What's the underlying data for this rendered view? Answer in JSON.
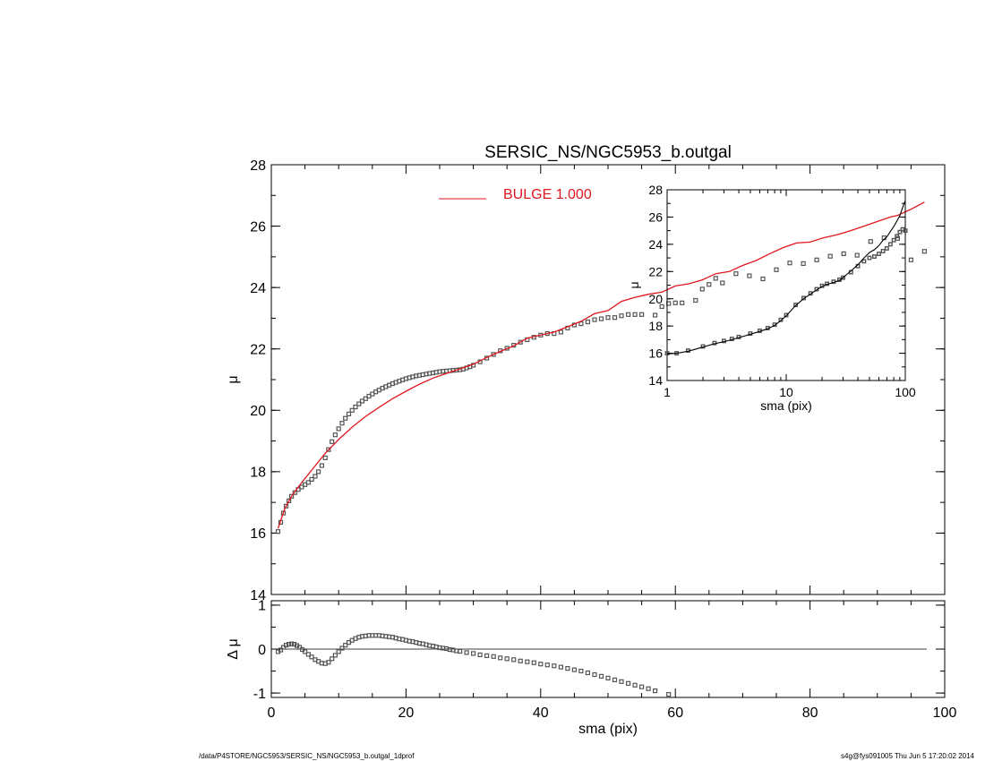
{
  "footer": {
    "path": "/data/P4STORE/NGC5953/SERSIC_NS/NGC5953_b.outgal_1dprof",
    "stamp": "s4g@fys091005  Thu Jun  5 17:20:02 2014"
  },
  "colors": {
    "bulge": "#e0161e",
    "data": "#555555",
    "axes": "#000000"
  },
  "chart_data": [
    {
      "id": "main",
      "type": "scatter",
      "title": "SERSIC_NS/NGC5953_b.outgal",
      "xlabel": "sma (pix)",
      "ylabel": "μ",
      "xlim": [
        0,
        100
      ],
      "ylim": [
        28,
        14
      ],
      "xticks": [
        "0",
        "20",
        "40",
        "60",
        "80",
        "100"
      ],
      "yticks": [
        "14",
        "16",
        "18",
        "20",
        "22",
        "24",
        "26",
        "28"
      ],
      "legend": {
        "label": "BULGE  1.000",
        "placement": "top-center"
      },
      "series": [
        {
          "role": "data",
          "style": "squares",
          "x": [
            1.0,
            1.4,
            1.8,
            2.2,
            2.6,
            3.0,
            3.5,
            4.0,
            4.5,
            5.0,
            5.5,
            6.0,
            6.5,
            7.0,
            7.5,
            8.0,
            8.5,
            9.0,
            9.5,
            10.0,
            10.5,
            11.0,
            11.5,
            12.0,
            12.5,
            13.0,
            13.5,
            14.0,
            14.5,
            15.0,
            15.5,
            16.0,
            16.5,
            17.0,
            17.5,
            18.0,
            18.5,
            19.0,
            19.5,
            20.0,
            20.5,
            21.0,
            21.5,
            22.0,
            22.5,
            23.0,
            23.5,
            24.0,
            24.5,
            25.0,
            25.5,
            26.0,
            26.5,
            27.0,
            27.5,
            28.0,
            28.5,
            29.0,
            29.5,
            30.0,
            31.0,
            32.0,
            33.0,
            34.0,
            35.0,
            36.0,
            37.0,
            38.0,
            39.0,
            40.0,
            41.0,
            42.0,
            43.0,
            44.0,
            45.0,
            46.0,
            47.0,
            48.0,
            49.0,
            50.0,
            51.0,
            52.0,
            53.0,
            54.0,
            55.0,
            57.0,
            58.0,
            59.0,
            60.0,
            61.0,
            63.0,
            64.0,
            65.0,
            66.0,
            67.0,
            69.0,
            71.0,
            73.0,
            75.0,
            77.0,
            79.0,
            81.0,
            83.0,
            85.0,
            87.0,
            89.0,
            91.0,
            93.0,
            95.0,
            97.0
          ],
          "y": [
            16.05,
            16.35,
            16.65,
            16.88,
            17.05,
            17.2,
            17.32,
            17.42,
            17.5,
            17.58,
            17.65,
            17.75,
            17.85,
            18.0,
            18.2,
            18.45,
            18.72,
            18.98,
            19.2,
            19.4,
            19.58,
            19.74,
            19.88,
            20.0,
            20.11,
            20.21,
            20.3,
            20.38,
            20.46,
            20.53,
            20.6,
            20.66,
            20.72,
            20.77,
            20.82,
            20.87,
            20.91,
            20.95,
            20.99,
            21.03,
            21.06,
            21.09,
            21.12,
            21.14,
            21.16,
            21.18,
            21.2,
            21.22,
            21.24,
            21.26,
            21.27,
            21.28,
            21.29,
            21.3,
            21.31,
            21.32,
            21.34,
            21.38,
            21.42,
            21.47,
            21.58,
            21.7,
            21.82,
            21.94,
            22.02,
            22.12,
            22.22,
            22.3,
            22.38,
            22.45,
            22.5,
            22.5,
            22.55,
            22.68,
            22.78,
            22.82,
            22.88,
            22.95,
            22.98,
            23.02,
            23.02,
            23.08,
            23.12,
            23.12,
            23.12,
            23.1,
            23.38,
            23.48,
            23.5,
            23.5,
            23.58,
            23.95,
            24.1,
            24.3,
            24.15,
            24.45,
            24.38,
            24.28,
            24.58,
            24.8,
            24.78,
            24.9,
            25.02,
            25.1,
            25.05,
            25.5,
            25.62,
            25.6,
            24.9,
            25.18
          ]
        },
        {
          "role": "model",
          "name": "BULGE  1.000",
          "style": "line",
          "x": [
            1.0,
            2.0,
            3.0,
            4.0,
            5.0,
            6.0,
            8.0,
            10.0,
            12.0,
            14.0,
            16.0,
            18.0,
            20.0,
            22.0,
            24.0,
            26.0,
            28.0,
            30.0,
            32.0,
            34.0,
            36.0,
            38.0,
            40.0,
            42.0,
            44.0,
            46.0,
            48.0,
            50.0,
            52.0,
            54.0,
            56.0,
            58.0,
            60.0,
            62.0,
            64.0,
            66.0,
            68.0,
            70.0,
            72.0,
            74.0,
            76.0,
            78.0,
            80.0,
            82.0,
            84.0,
            86.0,
            88.0,
            90.0,
            92.0,
            93.0,
            95.0,
            97.0
          ],
          "y": [
            16.15,
            16.8,
            17.2,
            17.5,
            17.78,
            18.05,
            18.6,
            19.05,
            19.45,
            19.8,
            20.1,
            20.38,
            20.62,
            20.85,
            21.05,
            21.2,
            21.35,
            21.5,
            21.72,
            21.92,
            22.1,
            22.35,
            22.45,
            22.55,
            22.72,
            22.9,
            23.15,
            23.25,
            23.55,
            23.68,
            23.78,
            23.85,
            24.05,
            24.12,
            24.25,
            24.45,
            24.52,
            24.72,
            24.88,
            25.1,
            25.3,
            25.45,
            25.48,
            25.62,
            25.72,
            25.85,
            26.0,
            26.15,
            26.3,
            26.35,
            26.55,
            26.78
          ]
        }
      ]
    },
    {
      "id": "residual",
      "type": "scatter",
      "xlabel": "sma (pix)",
      "ylabel": "Δ μ",
      "xlim": [
        0,
        100
      ],
      "ylim": [
        -1.1,
        1.1
      ],
      "xticks": [
        "0",
        "20",
        "40",
        "60",
        "80",
        "100"
      ],
      "yticks": [
        "1",
        "0",
        "-1"
      ],
      "zero_line": true,
      "series": [
        {
          "role": "residual",
          "style": "squares",
          "x": [
            1.0,
            1.4,
            1.8,
            2.2,
            2.6,
            3.0,
            3.4,
            3.8,
            4.2,
            4.6,
            5.0,
            5.5,
            6.0,
            6.5,
            7.0,
            7.5,
            8.0,
            8.5,
            9.0,
            9.5,
            10.0,
            10.5,
            11.0,
            11.5,
            12.0,
            12.5,
            13.0,
            13.5,
            14.0,
            14.5,
            15.0,
            15.5,
            16.0,
            16.5,
            17.0,
            17.5,
            18.0,
            18.5,
            19.0,
            19.5,
            20.0,
            20.5,
            21.0,
            21.5,
            22.0,
            22.5,
            23.0,
            23.5,
            24.0,
            24.5,
            25.0,
            25.5,
            26.0,
            26.5,
            27.0,
            27.5,
            28.0,
            29.0,
            30.0,
            31.0,
            32.0,
            33.0,
            34.0,
            35.0,
            36.0,
            37.0,
            38.0,
            39.0,
            40.0,
            41.0,
            42.0,
            43.0,
            44.0,
            45.0,
            46.0,
            47.0,
            48.0,
            49.0,
            50.0,
            51.0,
            52.0,
            53.0,
            54.0,
            55.0,
            56.0,
            57.0,
            59.0
          ],
          "y": [
            -0.06,
            -0.02,
            0.04,
            0.09,
            0.11,
            0.12,
            0.11,
            0.08,
            0.04,
            -0.01,
            -0.06,
            -0.12,
            -0.18,
            -0.24,
            -0.28,
            -0.32,
            -0.33,
            -0.3,
            -0.22,
            -0.14,
            -0.06,
            0.02,
            0.09,
            0.15,
            0.2,
            0.24,
            0.27,
            0.29,
            0.3,
            0.31,
            0.31,
            0.31,
            0.31,
            0.3,
            0.29,
            0.28,
            0.27,
            0.25,
            0.23,
            0.22,
            0.2,
            0.18,
            0.17,
            0.15,
            0.13,
            0.12,
            0.1,
            0.08,
            0.07,
            0.05,
            0.03,
            0.02,
            0.01,
            -0.01,
            -0.02,
            -0.04,
            -0.05,
            -0.08,
            -0.1,
            -0.13,
            -0.15,
            -0.17,
            -0.2,
            -0.22,
            -0.24,
            -0.27,
            -0.29,
            -0.31,
            -0.34,
            -0.36,
            -0.38,
            -0.41,
            -0.44,
            -0.47,
            -0.5,
            -0.54,
            -0.58,
            -0.62,
            -0.66,
            -0.7,
            -0.74,
            -0.78,
            -0.82,
            -0.86,
            -0.9,
            -0.95,
            -1.03
          ]
        }
      ]
    },
    {
      "id": "inset",
      "type": "line",
      "xlabel": "sma (pix)",
      "ylabel": "μ",
      "xscale": "log",
      "xlim": [
        1,
        100
      ],
      "ylim": [
        28,
        14
      ],
      "xticks": [
        "1",
        "10",
        "100"
      ],
      "yticks": [
        "14",
        "16",
        "18",
        "20",
        "22",
        "24",
        "26",
        "28"
      ],
      "series": [
        {
          "role": "data",
          "style": "squares",
          "x": [
            1.0,
            1.2,
            1.5,
            2.0,
            2.5,
            3.0,
            3.5,
            4.0,
            5.0,
            6.0,
            7.0,
            8.0,
            9.0,
            10.0,
            12.0,
            14.0,
            16.0,
            18.0,
            20.0,
            22.0,
            25.0,
            28.0,
            30.0,
            35.0,
            40.0,
            45.0,
            50.0,
            55.0,
            60.0,
            65.0,
            70.0,
            75.0,
            80.0,
            85.0,
            90.0,
            95.0,
            100.0
          ],
          "y": [
            16.0,
            16.0,
            16.2,
            16.5,
            16.75,
            16.9,
            17.05,
            17.2,
            17.45,
            17.65,
            17.85,
            18.1,
            18.45,
            18.8,
            19.55,
            20.05,
            20.4,
            20.7,
            20.95,
            21.1,
            21.25,
            21.4,
            21.55,
            21.95,
            22.4,
            22.75,
            23.0,
            23.1,
            23.3,
            23.5,
            23.7,
            24.0,
            24.3,
            24.6,
            24.9,
            25.1,
            25.0
          ]
        },
        {
          "role": "model",
          "style": "line",
          "x": [
            1.0,
            1.2,
            1.5,
            2.0,
            2.5,
            3.0,
            3.5,
            4.0,
            5.0,
            6.0,
            7.0,
            8.0,
            9.0,
            10.0,
            12.0,
            14.0,
            16.0,
            18.0,
            20.0,
            22.0,
            25.0,
            28.0,
            30.0,
            35.0,
            40.0,
            45.0,
            50.0,
            55.0,
            60.0,
            65.0,
            70.0,
            75.0,
            80.0,
            85.0,
            90.0,
            95.0,
            100.0
          ],
          "y": [
            15.95,
            16.0,
            16.15,
            16.45,
            16.7,
            16.85,
            17.0,
            17.15,
            17.4,
            17.6,
            17.8,
            18.05,
            18.4,
            18.75,
            19.5,
            20.0,
            20.35,
            20.65,
            20.9,
            21.05,
            21.2,
            21.35,
            21.55,
            22.05,
            22.5,
            23.0,
            23.4,
            23.6,
            23.9,
            24.3,
            24.55,
            24.95,
            25.3,
            25.7,
            26.1,
            26.7,
            27.2
          ]
        }
      ]
    }
  ]
}
